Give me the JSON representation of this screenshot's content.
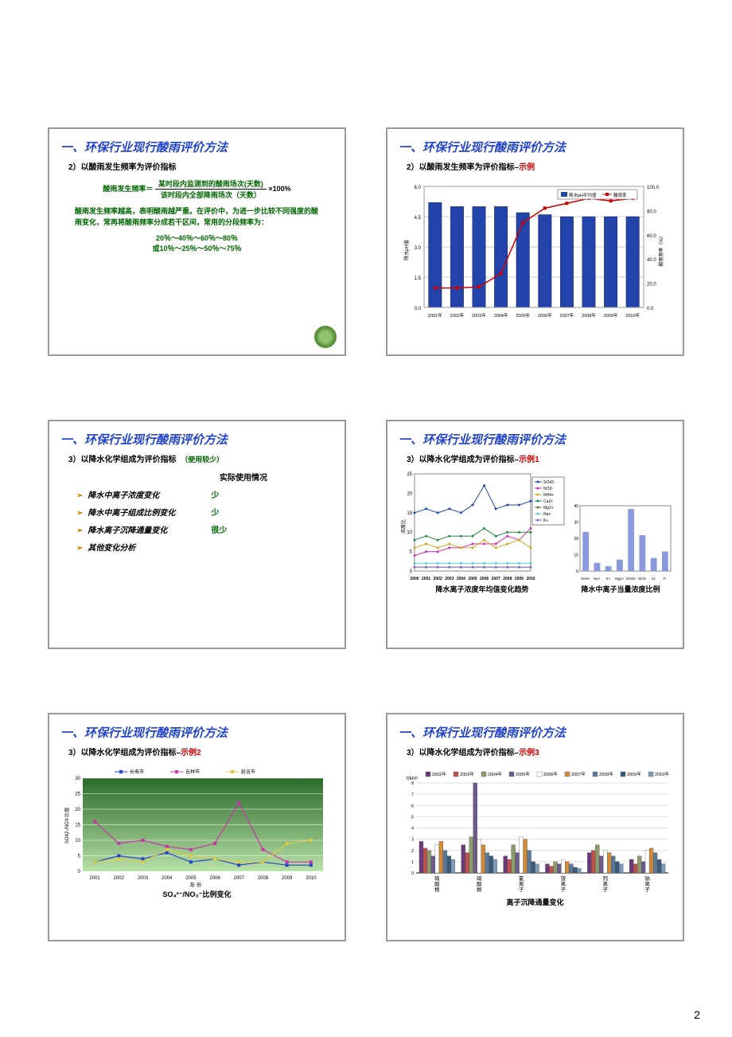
{
  "page_number": "2",
  "slide1": {
    "title": "一、环保行业现行酸雨评价方法",
    "subtitle": "2）以酸雨发生频率为评价指标",
    "formula_label": "酸雨发生频率＝",
    "formula_top": "某时段内监测到的酸雨场次(天数)",
    "formula_bot": "该时段内全部降雨场次（天数）",
    "formula_tail": "×100%",
    "body": "酸雨发生频率越高，表明酸雨越严重。在评价中，为进一步比较不同强度的酸雨变化，常再将酸雨频率分成若干区间，常用的分段频率为：",
    "interval1": "20％～40％～60％～80％",
    "interval2": "或10％～25％～50％～75％"
  },
  "slide2": {
    "title": "一、环保行业现行酸雨评价方法",
    "subtitle_main": "2）以酸雨发生频率为评价指标–",
    "subtitle_ex": "示例",
    "chart": {
      "type": "combo-bar-line",
      "categories": [
        "2001年",
        "2002年",
        "2003年",
        "2004年",
        "2005年",
        "2006年",
        "2007年",
        "2008年",
        "2009年",
        "2010年"
      ],
      "bar_values": [
        5.2,
        5.0,
        5.0,
        5.0,
        4.7,
        4.6,
        4.5,
        4.5,
        4.5,
        4.5
      ],
      "line_values": [
        16,
        16,
        17,
        28,
        70,
        82,
        86,
        90,
        88,
        90
      ],
      "bar_color": "#2244aa",
      "line_color": "#cc0000",
      "y1_label": "降水pH值",
      "y2_label": "酸雨频率（%）",
      "y1_lim": [
        0,
        6
      ],
      "y1_step": 1.5,
      "y2_lim": [
        0,
        100
      ],
      "y2_step": 20,
      "legend_bar": "降水pH平均值",
      "legend_line": "酸雨率",
      "bg": "#ffffff",
      "grid_color": "#cccccc",
      "tick_fontsize": 6
    }
  },
  "slide3": {
    "title": "一、环保行业现行酸雨评价方法",
    "subtitle_main": "3）以降水化学组成为评价指标",
    "subtitle_note": "（使用较少）",
    "header_col2": "实际使用情况",
    "items": [
      {
        "text": "降水中离子浓度变化",
        "val": "少"
      },
      {
        "text": "降水中离子组成比例变化",
        "val": "少"
      },
      {
        "text": "降水离子沉降通量变化",
        "val": "很少"
      },
      {
        "text": "其他变化分析",
        "val": ""
      }
    ]
  },
  "slide4": {
    "title": "一、环保行业现行酸雨评价方法",
    "subtitle_main": "3）以降水化学组成为评价指标–",
    "subtitle_ex": "示例1",
    "line_chart": {
      "type": "line",
      "categories": [
        "2000",
        "2001",
        "2002",
        "2003",
        "2004",
        "2005",
        "2006",
        "2007",
        "2008",
        "2009",
        "2010"
      ],
      "series": [
        {
          "name": "SO42-",
          "color": "#2244aa",
          "vals": [
            15,
            16,
            15,
            16,
            15,
            17,
            22,
            16,
            17,
            17,
            18
          ]
        },
        {
          "name": "NO3-",
          "color": "#cc33aa",
          "vals": [
            4,
            5,
            5,
            6,
            6,
            7,
            7,
            7,
            9,
            8,
            11
          ]
        },
        {
          "name": "NH4+",
          "color": "#ccaa22",
          "vals": [
            6,
            7,
            6,
            7,
            6,
            6,
            8,
            6,
            7,
            8,
            6
          ]
        },
        {
          "name": "Ca2+",
          "color": "#228844",
          "vals": [
            8,
            9,
            8,
            9,
            9,
            9,
            11,
            9,
            10,
            10,
            10
          ]
        },
        {
          "name": "Mg2+",
          "color": "#886644",
          "vals": [
            1,
            1,
            1,
            1,
            1,
            1,
            1,
            1,
            1,
            1,
            1
          ]
        },
        {
          "name": "Na+",
          "color": "#55cccc",
          "vals": [
            2,
            2,
            2,
            2,
            2,
            2,
            2,
            2,
            2,
            2,
            2
          ]
        },
        {
          "name": "K+",
          "color": "#8866cc",
          "vals": [
            1,
            1,
            1,
            1,
            1,
            1,
            1,
            1,
            1,
            1,
            1
          ]
        }
      ],
      "ylim": [
        0,
        25
      ],
      "ystep": 5,
      "ylabel": "浓度比",
      "caption": "降水离子浓度年均值变化趋势"
    },
    "bar_chart": {
      "type": "bar",
      "categories": [
        "NH4+",
        "Na+",
        "K+",
        "Mg2+",
        "SO42-",
        "NO3-",
        "Cl-",
        "F-"
      ],
      "values": [
        24,
        5,
        3,
        7,
        38,
        22,
        8,
        12
      ],
      "color": "#8899dd",
      "ylim": [
        0,
        40
      ],
      "ystep": 10,
      "caption": "降水中离子当量浓度比例"
    }
  },
  "slide5": {
    "title": "一、环保行业现行酸雨评价方法",
    "subtitle_main": "3）以降水化学组成为评价指标–",
    "subtitle_ex": "示例2",
    "chart": {
      "type": "line",
      "categories": [
        "2001",
        "2002",
        "2003",
        "2004",
        "2005",
        "2006",
        "2007",
        "2008",
        "2009",
        "2010"
      ],
      "series": [
        {
          "name": "长寿市",
          "color": "#2244cc",
          "vals": [
            3,
            5,
            4,
            6,
            3,
            4,
            2,
            3,
            2,
            2
          ]
        },
        {
          "name": "吉林市",
          "color": "#cc33aa",
          "vals": [
            16,
            9,
            10,
            8,
            7,
            9,
            22,
            7,
            3,
            3
          ]
        },
        {
          "name": "延吉市",
          "color": "#ddcc44",
          "vals": [
            3,
            4,
            3,
            7,
            5,
            4,
            3,
            3,
            9,
            10
          ]
        }
      ],
      "ylim": [
        0,
        30
      ],
      "ystep": 5,
      "xlabel": "年 份",
      "ylabel": "SO42-/NO3-比值",
      "bg_gradient": [
        "#2a6b2a",
        "#b8e0a8"
      ],
      "caption": "SO₄²⁻/NO₃⁻比例变化"
    }
  },
  "slide6": {
    "title": "一、环保行业现行酸雨评价方法",
    "subtitle_main": "3）以降水化学组成为评价指标–",
    "subtitle_ex": "示例3",
    "chart": {
      "type": "grouped-bar",
      "groups": [
        "硫酸根",
        "硝酸根",
        "氯离子",
        "铵离子",
        "钙离子",
        "钠离子"
      ],
      "series": [
        {
          "name": "2002年",
          "color": "#6b3a7a"
        },
        {
          "name": "2003年",
          "color": "#c0504d"
        },
        {
          "name": "2004年",
          "color": "#8b9b6b"
        },
        {
          "name": "2005年",
          "color": "#6b5a8b"
        },
        {
          "name": "2006年",
          "color": "#ffffff"
        },
        {
          "name": "2007年",
          "color": "#d08a3a"
        },
        {
          "name": "2008年",
          "color": "#5a7a9b"
        },
        {
          "name": "2009年",
          "color": "#3a5a7a"
        },
        {
          "name": "2010年",
          "color": "#7a9bb8"
        }
      ],
      "values": {
        "硫酸根": [
          2.8,
          2.2,
          2.0,
          1.5,
          2.5,
          2.8,
          2.0,
          1.5,
          1.2
        ],
        "硝酸根": [
          2.5,
          1.8,
          3.2,
          8.0,
          3.0,
          2.5,
          1.8,
          1.5,
          1.2
        ],
        "氯离子": [
          1.5,
          1.2,
          2.5,
          1.8,
          3.2,
          3.0,
          2.0,
          1.0,
          0.8
        ],
        "铵离子": [
          0.8,
          0.6,
          1.0,
          0.8,
          1.2,
          1.0,
          0.8,
          0.5,
          0.4
        ],
        "钙离子": [
          1.8,
          2.0,
          2.5,
          1.5,
          2.0,
          1.8,
          1.5,
          1.0,
          0.8
        ],
        "钠离子": [
          1.2,
          0.8,
          1.5,
          1.0,
          2.0,
          2.2,
          1.8,
          1.2,
          0.8
        ]
      },
      "ylabel": "t/km²",
      "ylim": [
        0,
        8
      ],
      "ystep": 1,
      "caption": "离子沉降通量变化"
    }
  }
}
